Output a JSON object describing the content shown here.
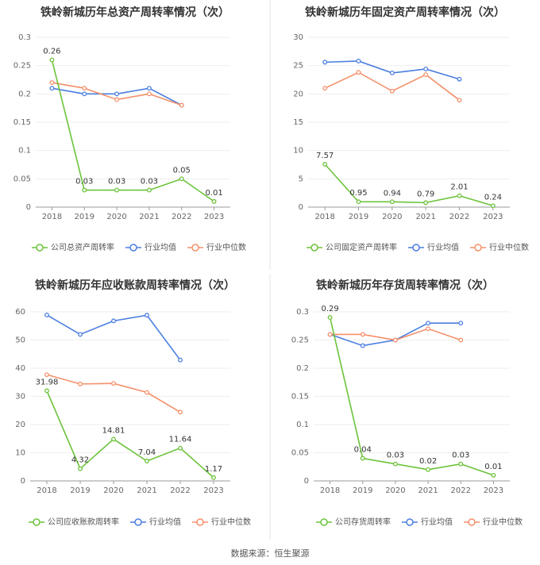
{
  "colors": {
    "company": "#6cc33a",
    "avg": "#4a7ee0",
    "median": "#f5906a",
    "axis": "#999999",
    "text": "#666666"
  },
  "source": "数据来源：恒生聚源",
  "chart_data": [
    {
      "type": "line",
      "title": "铁岭新城历年总资产周转率情况（次）",
      "categories": [
        "2018",
        "2019",
        "2020",
        "2021",
        "2022",
        "2023"
      ],
      "ylim": [
        0,
        0.3
      ],
      "yticks": [
        "0",
        "0.05",
        "0.1",
        "0.15",
        "0.2",
        "0.25",
        "0.3"
      ],
      "series": [
        {
          "name": "公司总资产周转率",
          "color": "#6cc33a",
          "labels": true,
          "values": [
            0.26,
            0.03,
            0.03,
            0.03,
            0.05,
            0.01
          ],
          "value_labels": [
            "0.26",
            "0.03",
            "0.03",
            "0.03",
            "0.05",
            "0.01"
          ]
        },
        {
          "name": "行业均值",
          "color": "#4a7ee0",
          "values": [
            0.21,
            0.2,
            0.2,
            0.21,
            0.18,
            null
          ]
        },
        {
          "name": "行业中位数",
          "color": "#f5906a",
          "values": [
            0.22,
            0.21,
            0.19,
            0.2,
            0.18,
            null
          ]
        }
      ]
    },
    {
      "type": "line",
      "title": "铁岭新城历年固定资产周转率情况（次）",
      "categories": [
        "2018",
        "2019",
        "2020",
        "2021",
        "2022",
        "2023"
      ],
      "ylim": [
        0,
        30
      ],
      "yticks": [
        "0",
        "5",
        "10",
        "15",
        "20",
        "25",
        "30"
      ],
      "series": [
        {
          "name": "公司固定资产周转率",
          "color": "#6cc33a",
          "labels": true,
          "values": [
            7.57,
            0.95,
            0.94,
            0.79,
            2.01,
            0.24
          ],
          "value_labels": [
            "7.57",
            "0.95",
            "0.94",
            "0.79",
            "2.01",
            "0.24"
          ]
        },
        {
          "name": "行业均值",
          "color": "#4a7ee0",
          "values": [
            25.6,
            25.8,
            23.7,
            24.4,
            22.6,
            null
          ]
        },
        {
          "name": "行业中位数",
          "color": "#f5906a",
          "values": [
            21.0,
            23.8,
            20.5,
            23.4,
            18.9,
            null
          ]
        }
      ]
    },
    {
      "type": "line",
      "title": "铁岭新城历年应收账款周转率情况（次）",
      "categories": [
        "2018",
        "2019",
        "2020",
        "2021",
        "2022",
        "2023"
      ],
      "ylim": [
        0,
        60
      ],
      "yticks": [
        "0",
        "10",
        "20",
        "30",
        "40",
        "50",
        "60"
      ],
      "series": [
        {
          "name": "公司应收账款周转率",
          "color": "#6cc33a",
          "labels": true,
          "values": [
            31.98,
            4.32,
            14.81,
            7.04,
            11.64,
            1.17
          ],
          "value_labels": [
            "31.98",
            "4.32",
            "14.81",
            "7.04",
            "11.64",
            "1.17"
          ]
        },
        {
          "name": "行业均值",
          "color": "#4a7ee0",
          "values": [
            58.9,
            52.0,
            56.8,
            58.8,
            42.9,
            null
          ]
        },
        {
          "name": "行业中位数",
          "color": "#f5906a",
          "values": [
            37.7,
            34.4,
            34.6,
            31.4,
            24.4,
            null
          ]
        }
      ]
    },
    {
      "type": "line",
      "title": "铁岭新城历年存货周转率情况（次）",
      "categories": [
        "2018",
        "2019",
        "2020",
        "2021",
        "2022",
        "2023"
      ],
      "ylim": [
        0,
        0.3
      ],
      "yticks": [
        "0",
        "0.05",
        "0.1",
        "0.15",
        "0.2",
        "0.25",
        "0.3"
      ],
      "series": [
        {
          "name": "公司存货周转率",
          "color": "#6cc33a",
          "labels": true,
          "values": [
            0.29,
            0.04,
            0.03,
            0.02,
            0.03,
            0.01
          ],
          "value_labels": [
            "0.29",
            "0.04",
            "0.03",
            "0.02",
            "0.03",
            "0.01"
          ]
        },
        {
          "name": "行业均值",
          "color": "#4a7ee0",
          "values": [
            0.26,
            0.24,
            0.25,
            0.28,
            0.28,
            null
          ]
        },
        {
          "name": "行业中位数",
          "color": "#f5906a",
          "values": [
            0.26,
            0.26,
            0.25,
            0.27,
            0.25,
            null
          ]
        }
      ]
    }
  ]
}
